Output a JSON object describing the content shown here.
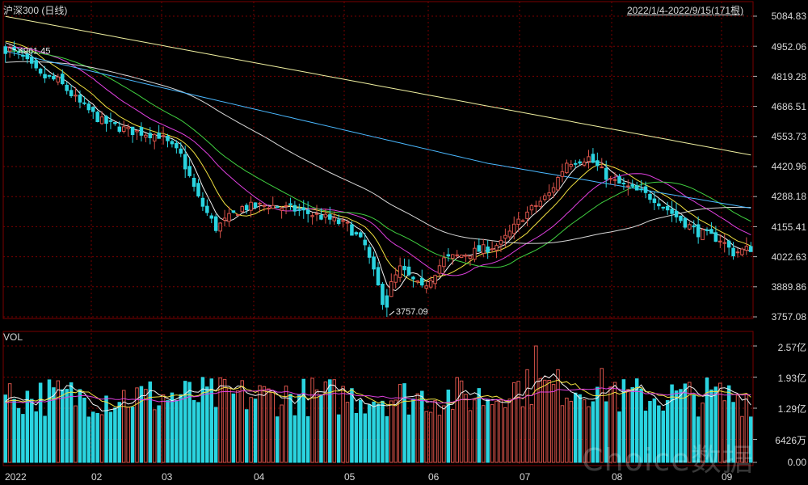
{
  "header": {
    "title": "沪深300 (日线)",
    "range": "2022/1/4-2022/9/15(171根)"
  },
  "watermark": "Choice数据",
  "colors": {
    "background": "#000000",
    "up": "#d9534a",
    "down": "#2ad4e0",
    "ma5": "#f4f4f4",
    "ma10": "#f0e040",
    "ma20": "#e040e0",
    "ma30": "#40d040",
    "ma60": "#d8d8d8",
    "ma120": "#4ab8ff",
    "ma250": "#f0f0a0",
    "grid": "#7a0000"
  },
  "chart_data": [
    {
      "type": "candlestick",
      "panel": "price",
      "y_ticks": [
        "5084.83",
        "4952.06",
        "4819.28",
        "4686.51",
        "4553.73",
        "4420.96",
        "4288.18",
        "4155.41",
        "4022.63",
        "3889.86",
        "3757.08"
      ],
      "ylim": [
        3757.08,
        5084.83
      ],
      "x_ticks": [
        "2022",
        "02",
        "03",
        "04",
        "05",
        "06",
        "07",
        "08",
        "09"
      ],
      "annotations": [
        {
          "text": "4961.45",
          "kind": "high"
        },
        {
          "text": "3757.09",
          "kind": "low"
        }
      ],
      "key_points": {
        "start_open": 4950,
        "high": 4961.45,
        "low": 3757.09,
        "end_close": 4055
      },
      "moving_averages": [
        "MA5",
        "MA10",
        "MA20",
        "MA30",
        "MA60",
        "MA120",
        "MA250"
      ]
    },
    {
      "type": "bar",
      "panel": "volume",
      "title": "VOL",
      "y_ticks": [
        "2.57亿",
        "1.93亿",
        "1.29亿",
        "6426万",
        "0.00"
      ],
      "ylim": [
        0,
        2.57
      ],
      "unit": "亿",
      "peak_value": 2.57
    }
  ]
}
